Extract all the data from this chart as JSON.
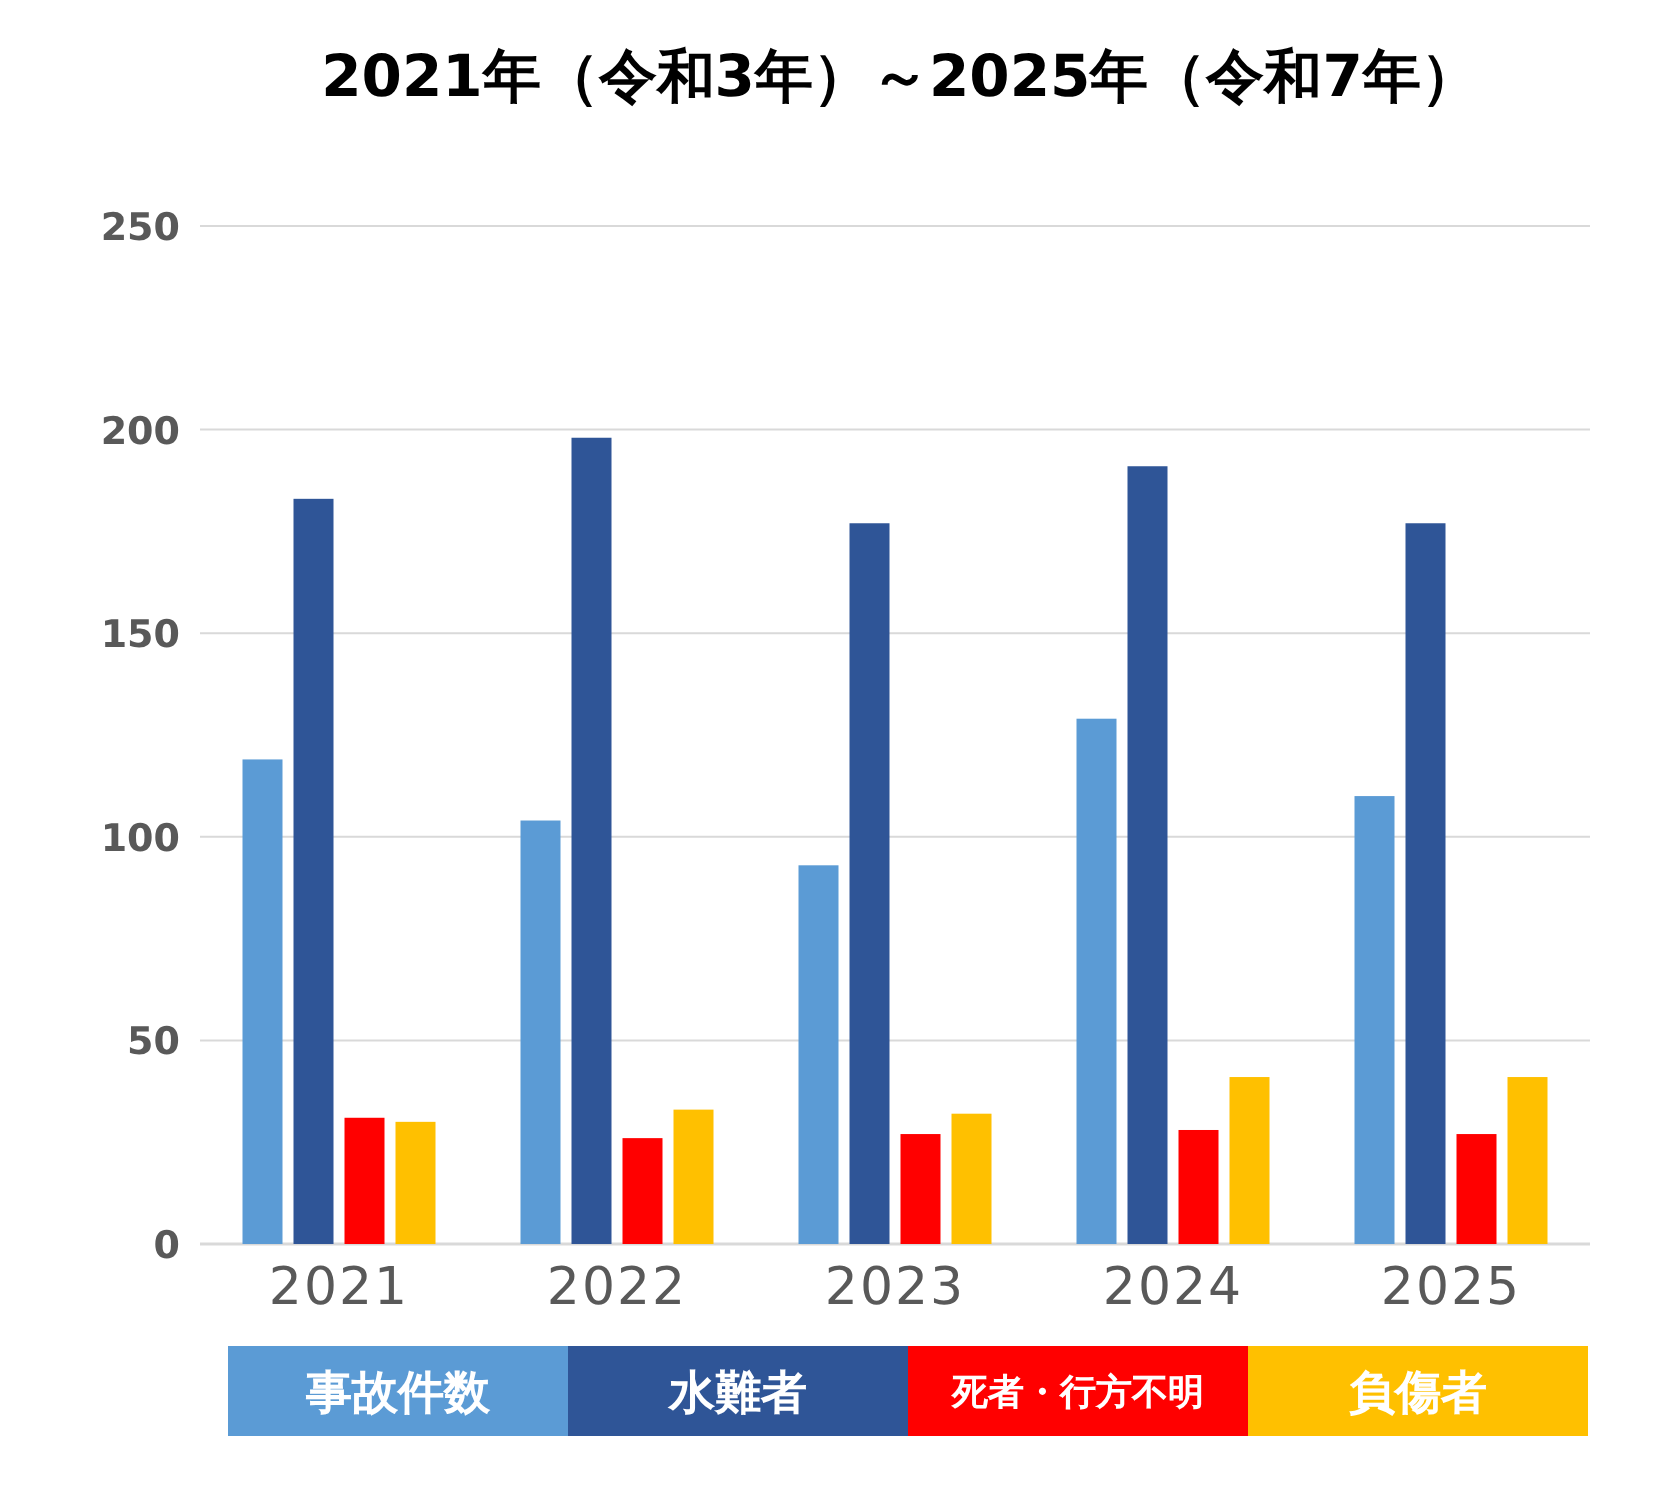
{
  "chart_data": {
    "type": "bar",
    "title": "2021年（令和3年）～2025年（令和7年）",
    "categories": [
      "2021",
      "2022",
      "2023",
      "2024",
      "2025"
    ],
    "series": [
      {
        "name": "事故件数",
        "color": "#5b9bd5",
        "values": [
          119,
          104,
          93,
          129,
          110
        ]
      },
      {
        "name": "水難者",
        "color": "#2f5597",
        "values": [
          183,
          198,
          177,
          191,
          177
        ]
      },
      {
        "name": "死者・行方不明",
        "color": "#ff0000",
        "values": [
          31,
          26,
          27,
          28,
          27
        ]
      },
      {
        "name": "負傷者",
        "color": "#ffc000",
        "values": [
          30,
          33,
          32,
          41,
          41
        ]
      }
    ],
    "ylim": [
      0,
      250
    ],
    "yticks": [
      0,
      50,
      100,
      150,
      200,
      250
    ],
    "grid": "y",
    "legend": "bottom"
  }
}
